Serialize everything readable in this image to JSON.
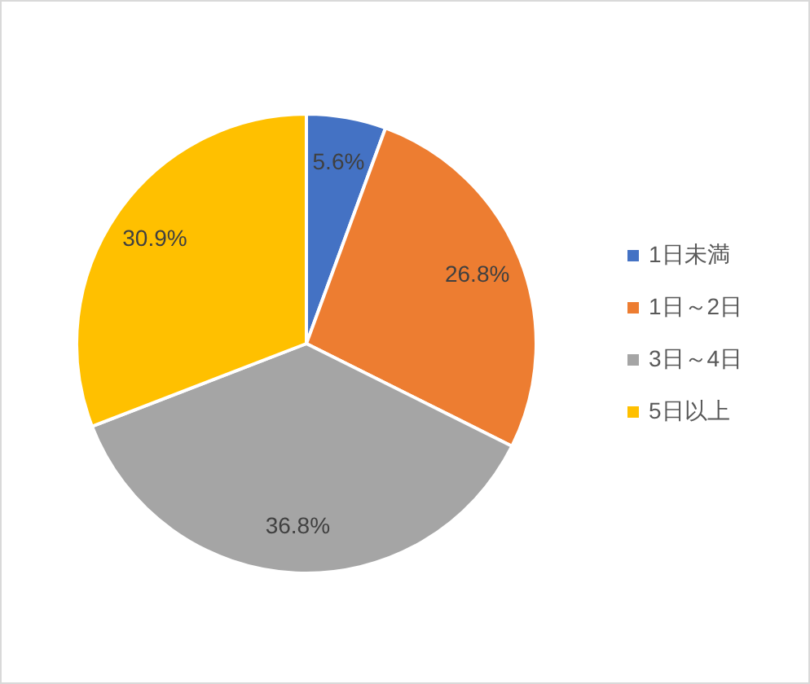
{
  "chart_data": {
    "type": "pie",
    "categories": [
      "1日未満",
      "1日～2日",
      "3日～4日",
      "5日以上"
    ],
    "values": [
      5.6,
      26.8,
      36.8,
      30.9
    ],
    "colors": [
      "#4472c4",
      "#ed7d31",
      "#a5a5a5",
      "#ffc000"
    ],
    "value_labels": [
      "5.6%",
      "26.8%",
      "36.8%",
      "30.9%"
    ],
    "legend": "right"
  }
}
